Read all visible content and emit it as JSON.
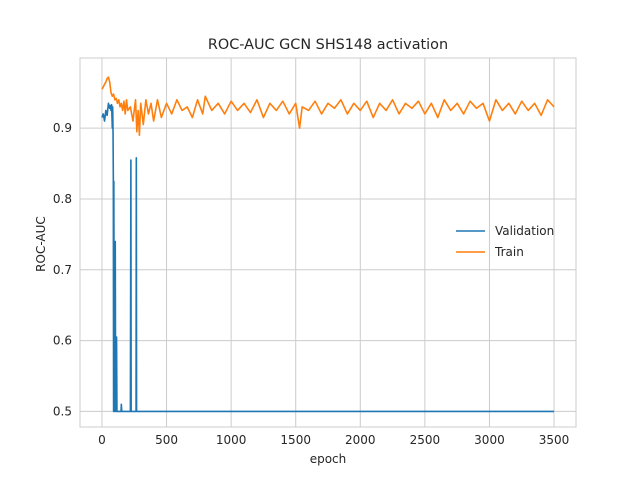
{
  "chart_data": {
    "type": "line",
    "title": "ROC-AUC GCN SHS148 activation",
    "xlabel": "epoch",
    "ylabel": "ROC-AUC",
    "xlim": [
      -170,
      3670
    ],
    "ylim": [
      0.478,
      0.999
    ],
    "xticks": [
      0,
      500,
      1000,
      1500,
      2000,
      2500,
      3000,
      3500
    ],
    "xtick_labels": [
      "0",
      "500",
      "1000",
      "1500",
      "2000",
      "2500",
      "3000",
      "3500"
    ],
    "yticks": [
      0.5,
      0.6,
      0.7,
      0.8,
      0.9
    ],
    "ytick_labels": [
      "0.5",
      "0.6",
      "0.7",
      "0.8",
      "0.9"
    ],
    "grid": true,
    "legend_position": "center-right",
    "series": [
      {
        "name": "Validation",
        "color": "#1f77b4",
        "x": [
          0,
          10,
          20,
          30,
          40,
          50,
          60,
          65,
          70,
          75,
          80,
          83,
          86,
          88,
          90,
          92,
          95,
          100,
          103,
          106,
          110,
          113,
          116,
          120,
          125,
          130,
          140,
          148,
          150,
          153,
          160,
          200,
          215,
          220,
          224,
          226,
          228,
          232,
          250,
          260,
          264,
          266,
          268,
          272,
          300,
          500,
          1000,
          1500,
          2000,
          2500,
          3000,
          3500
        ],
        "y": [
          0.915,
          0.92,
          0.91,
          0.925,
          0.918,
          0.935,
          0.928,
          0.932,
          0.925,
          0.933,
          0.9,
          0.93,
          0.89,
          0.83,
          0.5,
          0.825,
          0.5,
          0.5,
          0.74,
          0.5,
          0.5,
          0.605,
          0.5,
          0.5,
          0.5,
          0.5,
          0.5,
          0.5,
          0.51,
          0.5,
          0.5,
          0.5,
          0.5,
          0.5,
          0.855,
          0.5,
          0.5,
          0.5,
          0.5,
          0.5,
          0.5,
          0.858,
          0.5,
          0.5,
          0.5,
          0.5,
          0.5,
          0.5,
          0.5,
          0.5,
          0.5,
          0.5
        ]
      },
      {
        "name": "Train",
        "color": "#ff7f0e",
        "x": [
          0,
          10,
          20,
          30,
          40,
          50,
          60,
          70,
          80,
          90,
          100,
          110,
          120,
          130,
          140,
          150,
          160,
          170,
          180,
          190,
          200,
          220,
          240,
          260,
          270,
          280,
          290,
          300,
          320,
          340,
          360,
          380,
          400,
          430,
          460,
          500,
          540,
          580,
          620,
          660,
          700,
          740,
          780,
          800,
          850,
          900,
          950,
          1000,
          1050,
          1100,
          1150,
          1200,
          1250,
          1300,
          1350,
          1400,
          1450,
          1500,
          1530,
          1550,
          1600,
          1650,
          1700,
          1750,
          1800,
          1850,
          1900,
          1950,
          2000,
          2050,
          2100,
          2150,
          2200,
          2250,
          2300,
          2350,
          2400,
          2450,
          2500,
          2550,
          2600,
          2650,
          2700,
          2750,
          2800,
          2850,
          2900,
          2950,
          3000,
          3050,
          3100,
          3150,
          3200,
          3250,
          3300,
          3350,
          3400,
          3450,
          3500
        ],
        "y": [
          0.955,
          0.958,
          0.962,
          0.965,
          0.97,
          0.972,
          0.965,
          0.95,
          0.945,
          0.948,
          0.94,
          0.942,
          0.935,
          0.94,
          0.93,
          0.935,
          0.925,
          0.938,
          0.92,
          0.94,
          0.925,
          0.93,
          0.91,
          0.94,
          0.895,
          0.925,
          0.89,
          0.935,
          0.905,
          0.94,
          0.92,
          0.935,
          0.91,
          0.94,
          0.915,
          0.935,
          0.92,
          0.94,
          0.925,
          0.93,
          0.915,
          0.94,
          0.92,
          0.945,
          0.925,
          0.935,
          0.92,
          0.938,
          0.925,
          0.935,
          0.922,
          0.94,
          0.915,
          0.935,
          0.925,
          0.938,
          0.92,
          0.935,
          0.9,
          0.93,
          0.925,
          0.938,
          0.92,
          0.935,
          0.928,
          0.94,
          0.92,
          0.935,
          0.925,
          0.938,
          0.915,
          0.935,
          0.925,
          0.94,
          0.92,
          0.935,
          0.928,
          0.938,
          0.92,
          0.935,
          0.915,
          0.94,
          0.925,
          0.935,
          0.92,
          0.938,
          0.928,
          0.935,
          0.91,
          0.94,
          0.925,
          0.935,
          0.92,
          0.938,
          0.925,
          0.935,
          0.918,
          0.94,
          0.93
        ]
      }
    ]
  }
}
